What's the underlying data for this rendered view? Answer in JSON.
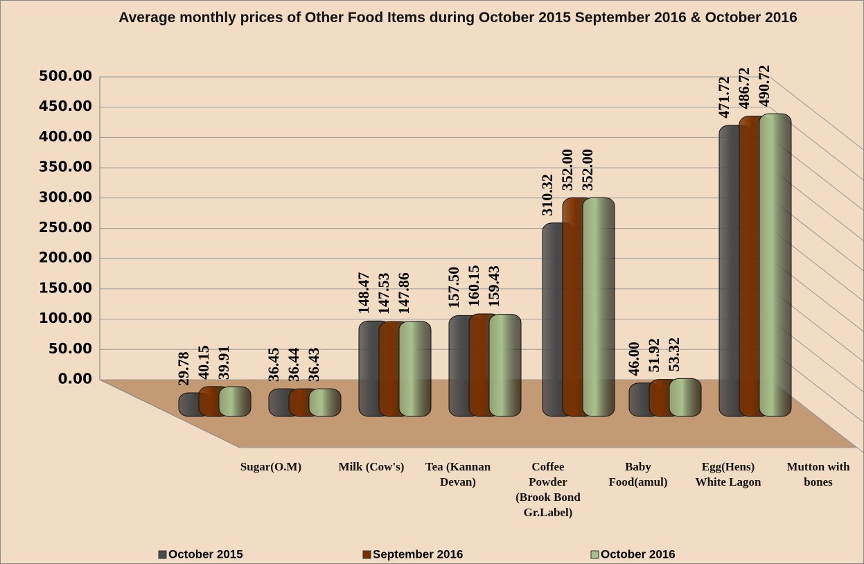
{
  "chart_data": {
    "type": "bar3d",
    "title": "Average monthly prices of Other Food Items during October 2015 September 2016 &  October 2016",
    "categories": [
      "Sugar(O.M)",
      "Milk (Cow's)",
      "Tea (Kannan Devan)",
      "Coffee Powder (Brook Bond Gr.Label)",
      "Baby Food(amul)",
      "Egg(Hens) White Lagon",
      "Mutton with bones"
    ],
    "series": [
      {
        "name": "October 2015",
        "color": "#4a4a4c",
        "values": [
          29.78,
          36.45,
          148.47,
          157.5,
          310.32,
          46,
          471.72
        ],
        "value_labels": [
          "29.78",
          "36.45",
          "148.47",
          "157.50",
          "310.32",
          "46.00",
          "471.72"
        ]
      },
      {
        "name": "September 2016",
        "color": "#7a3100",
        "values": [
          40.15,
          36.44,
          147.53,
          160.15,
          352,
          51.92,
          486.72
        ],
        "value_labels": [
          "40.15",
          "36.44",
          "147.53",
          "160.15",
          "352.00",
          "51.92",
          "486.72"
        ]
      },
      {
        "name": "October 2016",
        "color": "#a9c08e",
        "values": [
          39.91,
          36.43,
          147.86,
          159.43,
          352,
          53.32,
          490.72
        ],
        "value_labels": [
          "39.91",
          "36.43",
          "147.86",
          "159.43",
          "352.00",
          "53.32",
          "490.72"
        ]
      }
    ],
    "ylim": [
      0,
      500
    ],
    "yticks": [
      {
        "value": 0,
        "label": "0.00"
      },
      {
        "value": 50,
        "label": "50.00"
      },
      {
        "value": 100,
        "label": "100.00"
      },
      {
        "value": 150,
        "label": "150.00"
      },
      {
        "value": 200,
        "label": "200.00"
      },
      {
        "value": 250,
        "label": "250.00"
      },
      {
        "value": 300,
        "label": "300.00"
      },
      {
        "value": 350,
        "label": "350.00"
      },
      {
        "value": 400,
        "label": "400.00"
      },
      {
        "value": 450,
        "label": "450.00"
      },
      {
        "value": 500,
        "label": "500.00"
      }
    ],
    "grid": true,
    "legend": "bottom"
  }
}
